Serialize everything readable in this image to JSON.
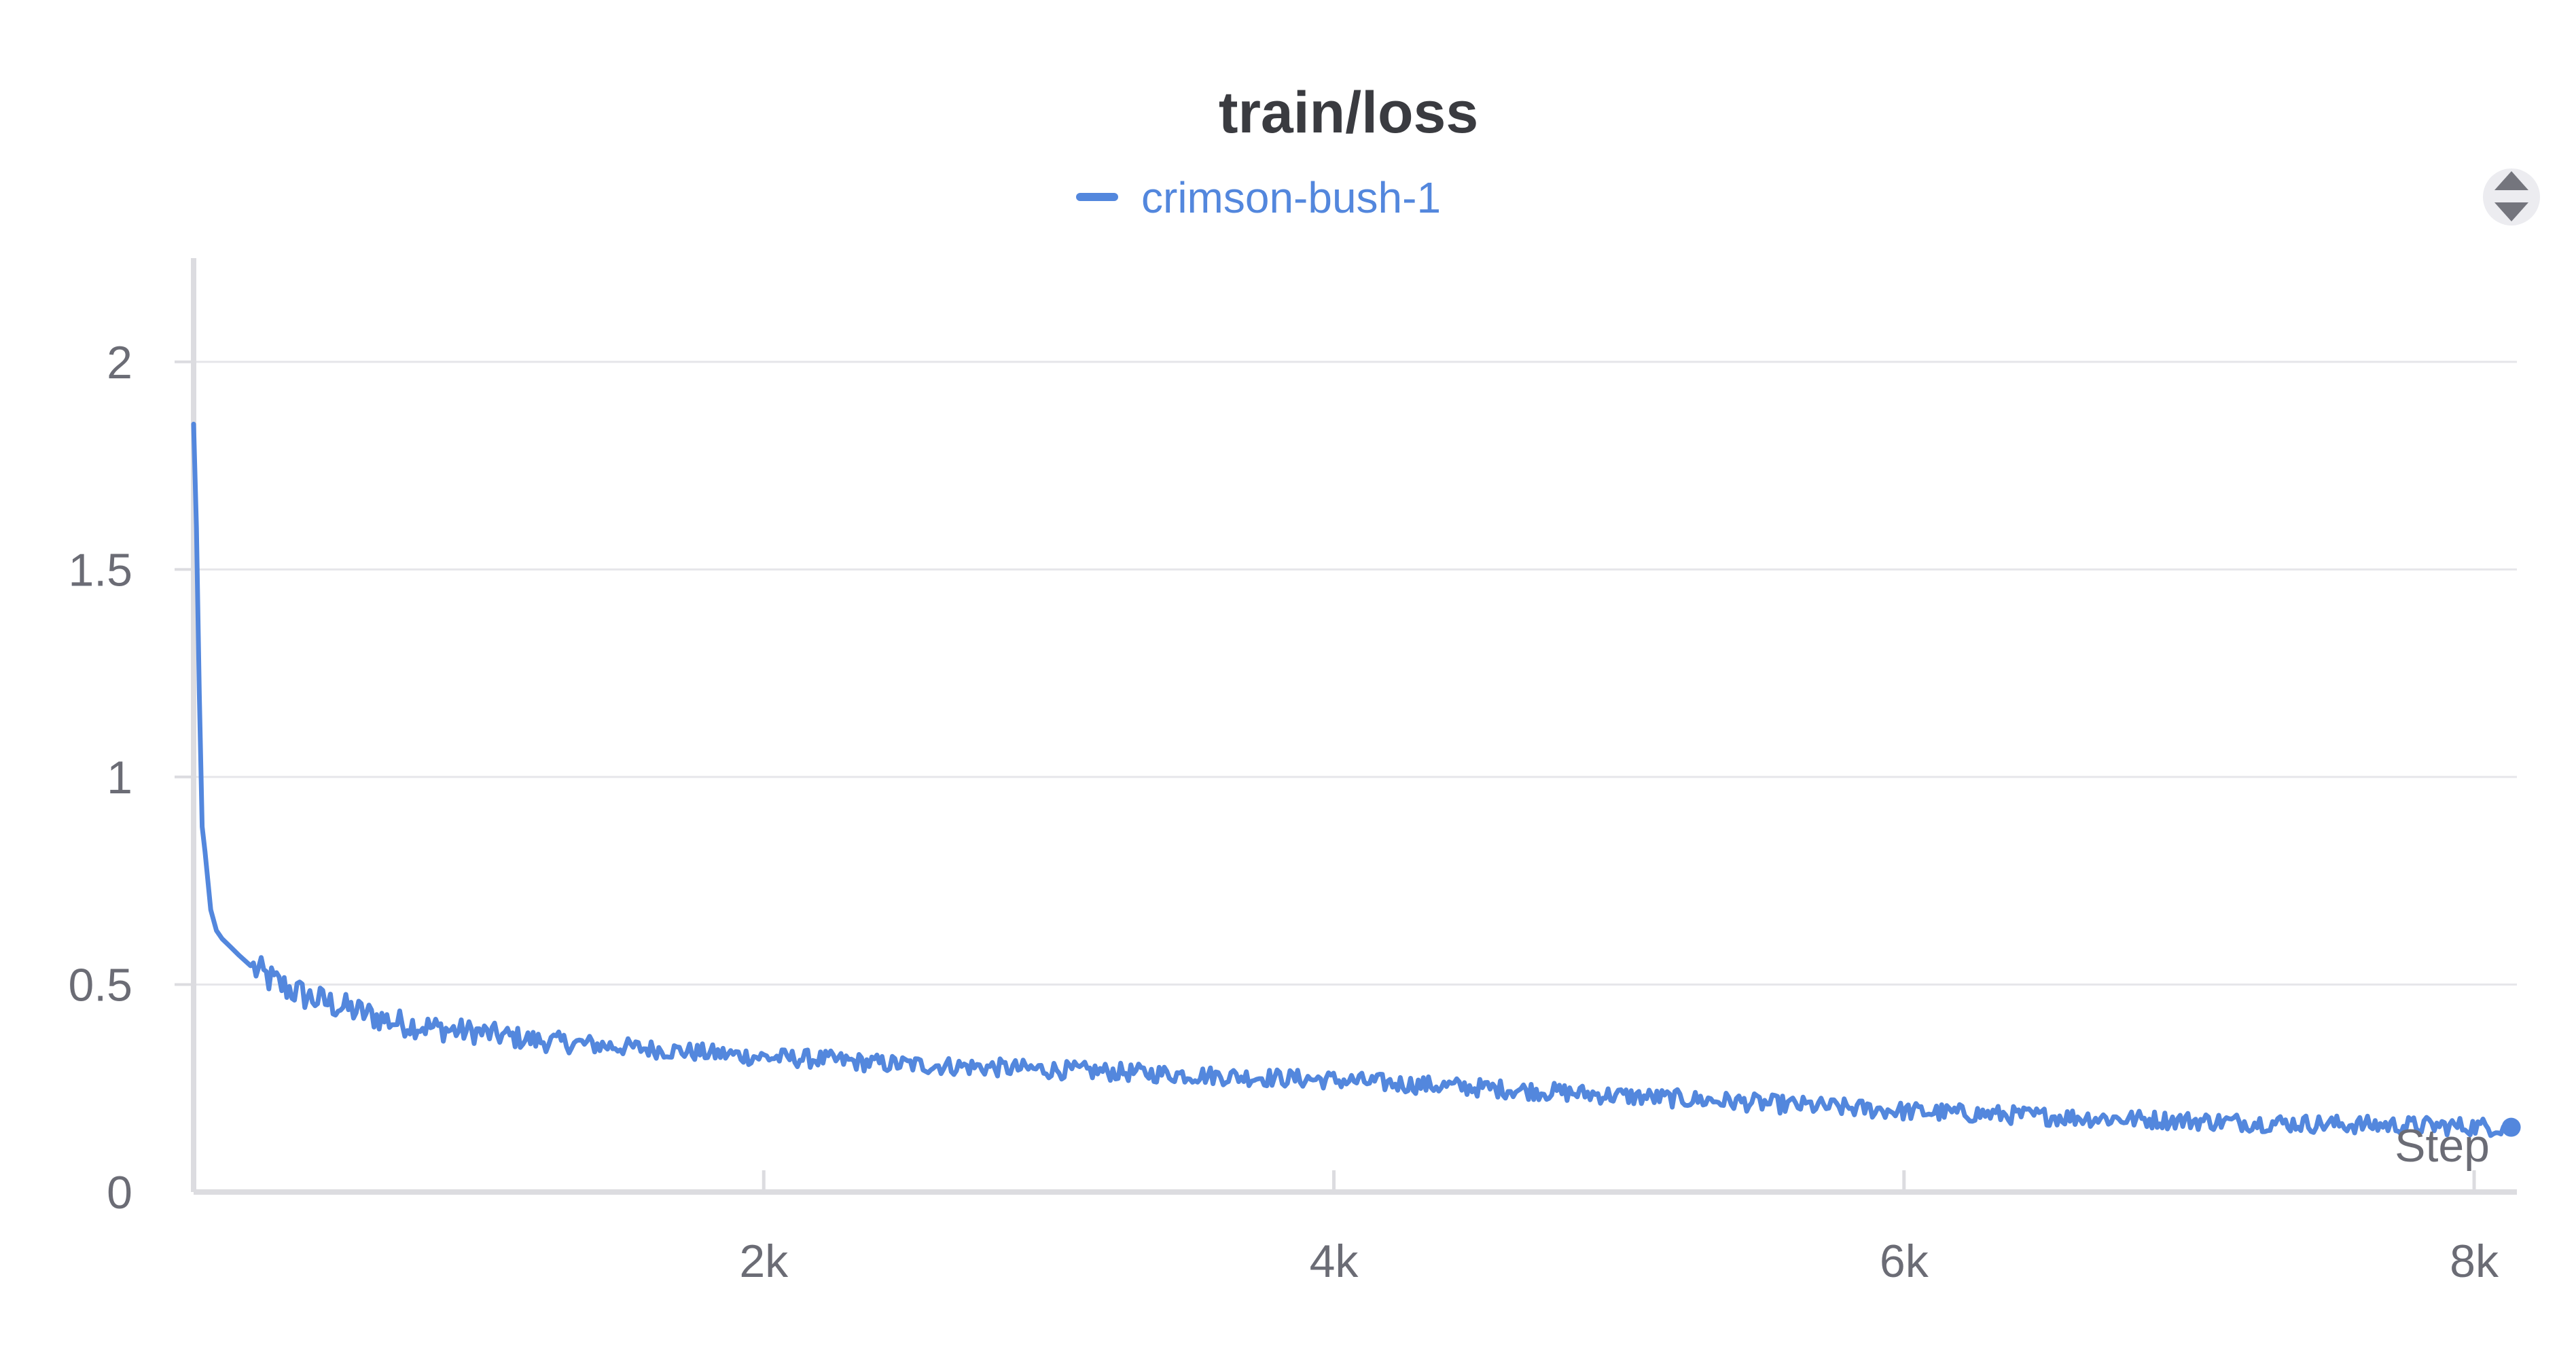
{
  "chart_data": {
    "type": "line",
    "title": "train/loss",
    "xlabel": "Step",
    "ylabel": "",
    "xlim": [
      0,
      8150
    ],
    "ylim": [
      0,
      2.25
    ],
    "x_ticks": [
      {
        "value": 2000,
        "label": "2k"
      },
      {
        "value": 4000,
        "label": "4k"
      },
      {
        "value": 6000,
        "label": "6k"
      },
      {
        "value": 8000,
        "label": "8k"
      }
    ],
    "y_ticks": [
      {
        "value": 0,
        "label": "0"
      },
      {
        "value": 0.5,
        "label": "0.5"
      },
      {
        "value": 1,
        "label": "1"
      },
      {
        "value": 1.5,
        "label": "1.5"
      },
      {
        "value": 2,
        "label": "2"
      }
    ],
    "grid": true,
    "legend_position": "top-center",
    "series": [
      {
        "name": "crimson-bush-1",
        "color": "#5387dd",
        "x": [
          0,
          10,
          20,
          30,
          40,
          60,
          80,
          100,
          130,
          160,
          200,
          250,
          300,
          400,
          500,
          600,
          700,
          800,
          900,
          1000,
          1100,
          1200,
          1300,
          1400,
          1500,
          1600,
          1700,
          1800,
          1900,
          2000,
          2200,
          2400,
          2600,
          2800,
          3000,
          3200,
          3400,
          3600,
          3800,
          4000,
          4200,
          4400,
          4600,
          4800,
          5000,
          5200,
          5400,
          5600,
          5800,
          6000,
          6200,
          6400,
          6600,
          6800,
          7000,
          7200,
          7400,
          7600,
          7800,
          8000,
          8130
        ],
        "values": [
          1.85,
          1.6,
          1.2,
          0.88,
          0.82,
          0.68,
          0.63,
          0.61,
          0.59,
          0.57,
          0.545,
          0.52,
          0.5,
          0.47,
          0.45,
          0.43,
          0.41,
          0.4,
          0.39,
          0.385,
          0.375,
          0.365,
          0.36,
          0.355,
          0.35,
          0.345,
          0.34,
          0.335,
          0.33,
          0.325,
          0.32,
          0.31,
          0.305,
          0.3,
          0.295,
          0.29,
          0.285,
          0.28,
          0.275,
          0.27,
          0.262,
          0.255,
          0.248,
          0.24,
          0.232,
          0.225,
          0.218,
          0.21,
          0.203,
          0.195,
          0.19,
          0.185,
          0.18,
          0.176,
          0.172,
          0.168,
          0.165,
          0.162,
          0.16,
          0.158,
          0.156
        ]
      }
    ]
  },
  "toolbar": {
    "sort_icon": "sort-updown-icon"
  }
}
